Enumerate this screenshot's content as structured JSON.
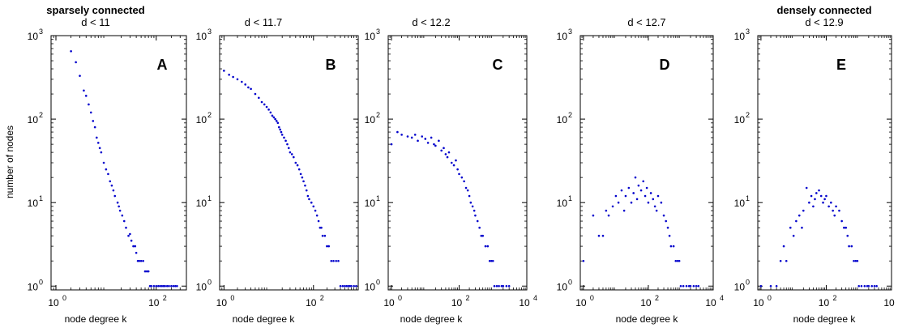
{
  "chart_data": [
    {
      "type": "scatter",
      "panel": "A",
      "title": "sparsely connected",
      "subtitle": "d < 11",
      "xlabel": "node degree k",
      "ylabel": "number of nodes",
      "xscale": "log",
      "yscale": "log",
      "xlim": [
        0.8,
        400
      ],
      "ylim": [
        0.9,
        1000
      ],
      "xticks": [
        {
          "v": 1,
          "b": "10",
          "e": "0"
        },
        {
          "v": 100,
          "b": "10",
          "e": "2"
        }
      ],
      "yticks": [
        {
          "v": 1,
          "b": "10",
          "e": "0"
        },
        {
          "v": 10,
          "b": "10",
          "e": "1"
        },
        {
          "v": 100,
          "b": "10",
          "e": "2"
        },
        {
          "v": 1000,
          "b": "10",
          "e": "3"
        }
      ],
      "color": "#0000cc",
      "points": [
        [
          2,
          650
        ],
        [
          2.5,
          480
        ],
        [
          3,
          330
        ],
        [
          3.6,
          220
        ],
        [
          4,
          190
        ],
        [
          4.5,
          150
        ],
        [
          5,
          120
        ],
        [
          5.5,
          95
        ],
        [
          6,
          80
        ],
        [
          6.5,
          60
        ],
        [
          7,
          52
        ],
        [
          7.5,
          45
        ],
        [
          8,
          40
        ],
        [
          9,
          30
        ],
        [
          10,
          25
        ],
        [
          11,
          22
        ],
        [
          12,
          18
        ],
        [
          13,
          16
        ],
        [
          14,
          14
        ],
        [
          15,
          12
        ],
        [
          17,
          10
        ],
        [
          18,
          9
        ],
        [
          19,
          8
        ],
        [
          21,
          7
        ],
        [
          23,
          6
        ],
        [
          25,
          5
        ],
        [
          28,
          4
        ],
        [
          30,
          4.2
        ],
        [
          32,
          3.5
        ],
        [
          35,
          3
        ],
        [
          38,
          3
        ],
        [
          40,
          2.5
        ],
        [
          43,
          2
        ],
        [
          46,
          2
        ],
        [
          50,
          2
        ],
        [
          55,
          2
        ],
        [
          60,
          1.5
        ],
        [
          65,
          1.5
        ],
        [
          70,
          1.5
        ],
        [
          75,
          1
        ],
        [
          80,
          1
        ],
        [
          90,
          1
        ],
        [
          100,
          1
        ],
        [
          110,
          1
        ],
        [
          120,
          1
        ],
        [
          130,
          1
        ],
        [
          140,
          1
        ],
        [
          150,
          1
        ],
        [
          165,
          1
        ],
        [
          180,
          1
        ],
        [
          200,
          1
        ],
        [
          220,
          1
        ],
        [
          240,
          1
        ],
        [
          260,
          1
        ]
      ]
    },
    {
      "type": "scatter",
      "panel": "B",
      "title": "",
      "subtitle": "d < 11.7",
      "xlabel": "node degree k",
      "ylabel": "",
      "xscale": "log",
      "yscale": "log",
      "xlim": [
        0.8,
        1000
      ],
      "ylim": [
        0.9,
        1000
      ],
      "xticks": [
        {
          "v": 1,
          "b": "10",
          "e": "0"
        },
        {
          "v": 100,
          "b": "10",
          "e": "2"
        }
      ],
      "yticks": [
        {
          "v": 1,
          "b": "10",
          "e": "0"
        },
        {
          "v": 10,
          "b": "10",
          "e": "1"
        },
        {
          "v": 100,
          "b": "10",
          "e": "2"
        },
        {
          "v": 1000,
          "b": "10",
          "e": "3"
        }
      ],
      "color": "#0000cc",
      "points": [
        [
          1,
          380
        ],
        [
          1.3,
          340
        ],
        [
          1.6,
          320
        ],
        [
          2,
          300
        ],
        [
          2.5,
          280
        ],
        [
          3,
          260
        ],
        [
          3.5,
          240
        ],
        [
          4,
          230
        ],
        [
          5,
          200
        ],
        [
          6,
          180
        ],
        [
          7,
          160
        ],
        [
          8,
          150
        ],
        [
          9,
          140
        ],
        [
          10,
          130
        ],
        [
          11,
          120
        ],
        [
          12,
          110
        ],
        [
          13,
          105
        ],
        [
          14,
          100
        ],
        [
          15,
          95
        ],
        [
          16,
          90
        ],
        [
          17,
          80
        ],
        [
          18,
          75
        ],
        [
          19,
          70
        ],
        [
          20,
          65
        ],
        [
          22,
          60
        ],
        [
          24,
          55
        ],
        [
          26,
          50
        ],
        [
          28,
          45
        ],
        [
          30,
          40
        ],
        [
          33,
          38
        ],
        [
          36,
          35
        ],
        [
          40,
          30
        ],
        [
          44,
          28
        ],
        [
          48,
          25
        ],
        [
          52,
          22
        ],
        [
          56,
          20
        ],
        [
          60,
          18
        ],
        [
          65,
          16
        ],
        [
          70,
          14
        ],
        [
          75,
          12
        ],
        [
          80,
          11
        ],
        [
          90,
          10
        ],
        [
          100,
          9
        ],
        [
          110,
          8
        ],
        [
          120,
          7
        ],
        [
          130,
          6
        ],
        [
          140,
          5
        ],
        [
          150,
          5
        ],
        [
          160,
          4
        ],
        [
          180,
          4
        ],
        [
          200,
          3
        ],
        [
          220,
          3
        ],
        [
          250,
          2
        ],
        [
          280,
          2
        ],
        [
          320,
          2
        ],
        [
          360,
          2
        ],
        [
          400,
          1
        ],
        [
          450,
          1
        ],
        [
          500,
          1
        ],
        [
          550,
          1
        ],
        [
          600,
          1
        ],
        [
          650,
          1
        ],
        [
          700,
          1
        ],
        [
          800,
          1
        ],
        [
          900,
          1
        ]
      ]
    },
    {
      "type": "scatter",
      "panel": "C",
      "title": "",
      "subtitle": "d < 12.2",
      "xlabel": "node degree k",
      "ylabel": "",
      "xscale": "log",
      "yscale": "log",
      "xlim": [
        0.8,
        10000
      ],
      "ylim": [
        0.9,
        1000
      ],
      "xticks": [
        {
          "v": 1,
          "b": "10",
          "e": "0"
        },
        {
          "v": 100,
          "b": "10",
          "e": "2"
        },
        {
          "v": 10000,
          "b": "10",
          "e": "4"
        }
      ],
      "yticks": [
        {
          "v": 1,
          "b": "10",
          "e": "0"
        },
        {
          "v": 10,
          "b": "10",
          "e": "1"
        },
        {
          "v": 100,
          "b": "10",
          "e": "2"
        },
        {
          "v": 1000,
          "b": "10",
          "e": "3"
        }
      ],
      "color": "#0000cc",
      "points": [
        [
          1,
          50
        ],
        [
          1.5,
          70
        ],
        [
          2,
          65
        ],
        [
          3,
          62
        ],
        [
          4,
          60
        ],
        [
          5,
          65
        ],
        [
          6,
          55
        ],
        [
          8,
          62
        ],
        [
          10,
          58
        ],
        [
          12,
          52
        ],
        [
          15,
          60
        ],
        [
          18,
          50
        ],
        [
          20,
          48
        ],
        [
          25,
          55
        ],
        [
          30,
          42
        ],
        [
          35,
          45
        ],
        [
          40,
          38
        ],
        [
          45,
          35
        ],
        [
          50,
          40
        ],
        [
          60,
          30
        ],
        [
          70,
          28
        ],
        [
          80,
          32
        ],
        [
          90,
          25
        ],
        [
          100,
          22
        ],
        [
          120,
          20
        ],
        [
          140,
          18
        ],
        [
          160,
          15
        ],
        [
          180,
          14
        ],
        [
          200,
          12
        ],
        [
          220,
          10
        ],
        [
          250,
          9
        ],
        [
          280,
          8
        ],
        [
          300,
          7
        ],
        [
          350,
          6
        ],
        [
          400,
          5
        ],
        [
          450,
          4
        ],
        [
          500,
          4
        ],
        [
          600,
          3
        ],
        [
          700,
          3
        ],
        [
          800,
          2
        ],
        [
          900,
          2
        ],
        [
          1000,
          2
        ],
        [
          1100,
          1
        ],
        [
          1300,
          1
        ],
        [
          1500,
          1
        ],
        [
          1800,
          1
        ],
        [
          2000,
          1
        ],
        [
          2500,
          1
        ],
        [
          3000,
          1
        ]
      ]
    },
    {
      "type": "scatter",
      "panel": "D",
      "title": "",
      "subtitle": "d < 12.7",
      "xlabel": "node degree k",
      "ylabel": "",
      "xscale": "log",
      "yscale": "log",
      "xlim": [
        0.8,
        10000
      ],
      "ylim": [
        0.9,
        1000
      ],
      "xticks": [
        {
          "v": 1,
          "b": "10",
          "e": "0"
        },
        {
          "v": 100,
          "b": "10",
          "e": "2"
        },
        {
          "v": 10000,
          "b": "10",
          "e": "4"
        }
      ],
      "yticks": [
        {
          "v": 1,
          "b": "10",
          "e": "0"
        },
        {
          "v": 10,
          "b": "10",
          "e": "1"
        },
        {
          "v": 100,
          "b": "10",
          "e": "2"
        },
        {
          "v": 1000,
          "b": "10",
          "e": "3"
        }
      ],
      "color": "#0000cc",
      "points": [
        [
          1,
          2
        ],
        [
          2,
          7
        ],
        [
          3,
          4
        ],
        [
          4,
          4
        ],
        [
          5,
          8
        ],
        [
          6,
          7
        ],
        [
          8,
          9
        ],
        [
          10,
          12
        ],
        [
          12,
          10
        ],
        [
          15,
          14
        ],
        [
          18,
          8
        ],
        [
          20,
          12
        ],
        [
          25,
          15
        ],
        [
          30,
          10
        ],
        [
          35,
          13
        ],
        [
          40,
          20
        ],
        [
          45,
          11
        ],
        [
          50,
          16
        ],
        [
          60,
          14
        ],
        [
          70,
          18
        ],
        [
          80,
          12
        ],
        [
          90,
          15
        ],
        [
          100,
          10
        ],
        [
          120,
          13
        ],
        [
          140,
          11
        ],
        [
          160,
          9
        ],
        [
          180,
          8
        ],
        [
          200,
          12
        ],
        [
          250,
          10
        ],
        [
          300,
          7
        ],
        [
          350,
          6
        ],
        [
          400,
          5
        ],
        [
          450,
          4
        ],
        [
          500,
          3
        ],
        [
          600,
          3
        ],
        [
          700,
          2
        ],
        [
          800,
          2
        ],
        [
          900,
          2
        ],
        [
          1000,
          1
        ],
        [
          1200,
          1
        ],
        [
          1500,
          1
        ],
        [
          1800,
          1
        ],
        [
          2000,
          1
        ],
        [
          2500,
          1
        ],
        [
          3000,
          1
        ],
        [
          3500,
          1
        ]
      ]
    },
    {
      "type": "scatter",
      "panel": "E",
      "title": "densely connected",
      "subtitle": "d < 12.9",
      "xlabel": "node degree k",
      "ylabel": "",
      "xscale": "log",
      "yscale": "log",
      "xlim": [
        0.8,
        10000
      ],
      "ylim": [
        0.9,
        1000
      ],
      "xticks": [
        {
          "v": 1,
          "b": "10",
          "e": "0"
        },
        {
          "v": 100,
          "b": "10",
          "e": "2"
        },
        {
          "v": 10000,
          "b": "10",
          "e": "4"
        }
      ],
      "yticks": [
        {
          "v": 1,
          "b": "10",
          "e": "0"
        },
        {
          "v": 10,
          "b": "10",
          "e": "1"
        },
        {
          "v": 100,
          "b": "10",
          "e": "2"
        },
        {
          "v": 1000,
          "b": "10",
          "e": "3"
        }
      ],
      "color": "#0000cc",
      "points": [
        [
          1,
          1
        ],
        [
          2,
          1
        ],
        [
          3,
          1
        ],
        [
          4,
          2
        ],
        [
          5,
          3
        ],
        [
          6,
          2
        ],
        [
          8,
          5
        ],
        [
          10,
          4
        ],
        [
          12,
          6
        ],
        [
          15,
          7
        ],
        [
          18,
          5
        ],
        [
          20,
          8
        ],
        [
          25,
          15
        ],
        [
          30,
          10
        ],
        [
          35,
          12
        ],
        [
          40,
          9
        ],
        [
          45,
          11
        ],
        [
          50,
          13
        ],
        [
          60,
          14
        ],
        [
          70,
          12
        ],
        [
          80,
          10
        ],
        [
          90,
          11
        ],
        [
          100,
          12
        ],
        [
          120,
          9
        ],
        [
          140,
          10
        ],
        [
          160,
          8
        ],
        [
          180,
          7
        ],
        [
          200,
          9
        ],
        [
          250,
          8
        ],
        [
          300,
          6
        ],
        [
          350,
          5
        ],
        [
          400,
          5
        ],
        [
          450,
          4
        ],
        [
          500,
          3
        ],
        [
          600,
          3
        ],
        [
          700,
          2
        ],
        [
          800,
          2
        ],
        [
          900,
          2
        ],
        [
          1000,
          1
        ],
        [
          1200,
          1
        ],
        [
          1500,
          1
        ],
        [
          1800,
          1
        ],
        [
          2000,
          1
        ],
        [
          2500,
          1
        ],
        [
          3000,
          1
        ],
        [
          3500,
          1
        ]
      ]
    }
  ]
}
